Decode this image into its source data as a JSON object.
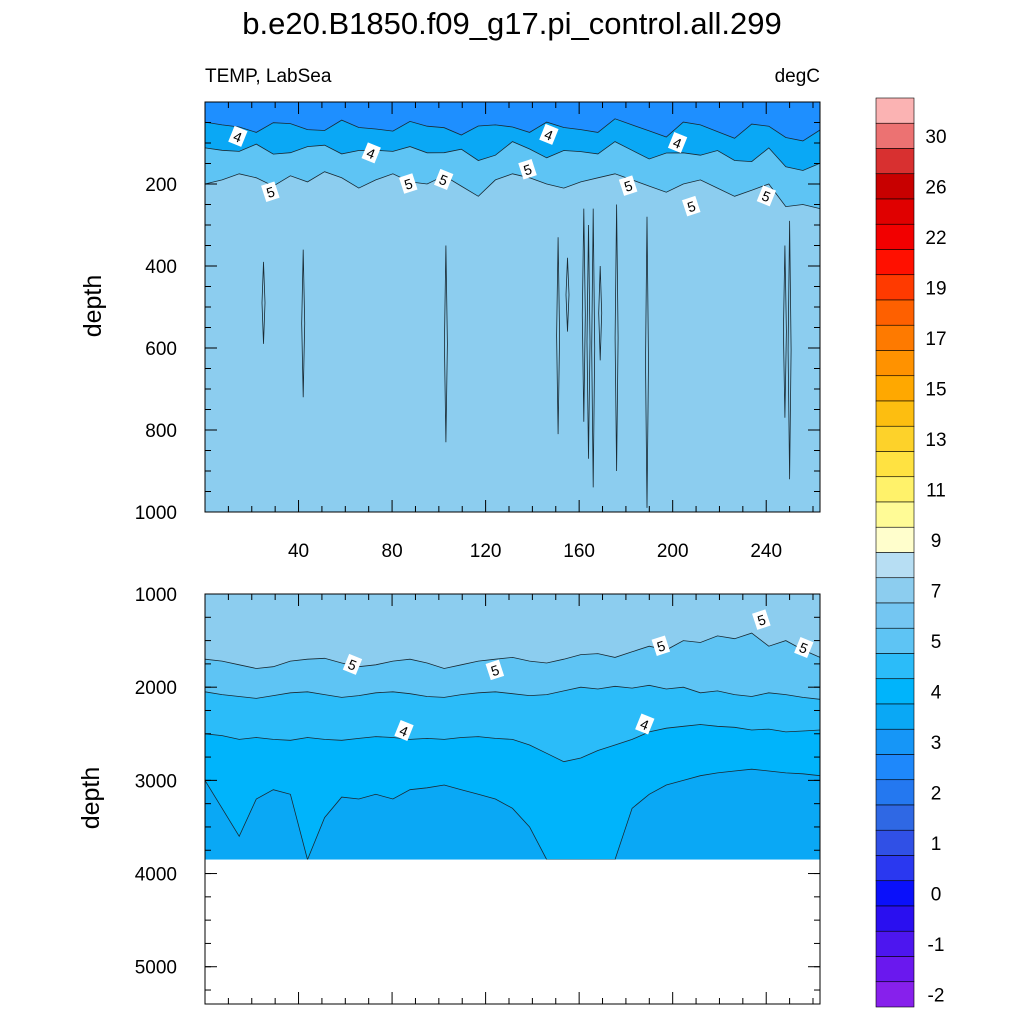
{
  "title": "b.e20.B1850.f09_g17.pi_control.all.299",
  "chart_data": [
    {
      "type": "contour",
      "panel": "upper",
      "subtitle_left": "TEMP, LabSea",
      "subtitle_right": "degC",
      "ylabel": "depth",
      "xlim": [
        0,
        263
      ],
      "ylim": [
        0,
        1000
      ],
      "y_reversed": true,
      "x_ticks": [
        40,
        80,
        120,
        160,
        200,
        240
      ],
      "y_ticks": [
        200,
        400,
        600,
        800,
        1000
      ],
      "bands": [
        {
          "value": 2.5,
          "color": "#1e8fff"
        },
        {
          "value": 3.5,
          "color": "#0aa8f5"
        },
        {
          "value": 4.5,
          "color": "#5ec4f4"
        },
        {
          "value": 5.5,
          "color": "#8ccdef"
        }
      ],
      "isotherm_5_depth": [
        200,
        190,
        175,
        185,
        205,
        180,
        195,
        170,
        185,
        210,
        190,
        175,
        195,
        200,
        180,
        205,
        230,
        190,
        175,
        185,
        200,
        210,
        195,
        185,
        175,
        190,
        205,
        220,
        200,
        190,
        210,
        230,
        215,
        200,
        255,
        250,
        260
      ],
      "contour_labels": [
        {
          "text": "4",
          "x": 14,
          "y": 85
        },
        {
          "text": "5",
          "x": 28,
          "y": 220
        },
        {
          "text": "4",
          "x": 71,
          "y": 125
        },
        {
          "text": "5",
          "x": 87,
          "y": 200
        },
        {
          "text": "5",
          "x": 102,
          "y": 190
        },
        {
          "text": "5",
          "x": 138,
          "y": 165
        },
        {
          "text": "4",
          "x": 147,
          "y": 80
        },
        {
          "text": "5",
          "x": 181,
          "y": 205
        },
        {
          "text": "4",
          "x": 202,
          "y": 100
        },
        {
          "text": "5",
          "x": 208,
          "y": 255
        },
        {
          "text": "5",
          "x": 240,
          "y": 230
        }
      ],
      "vertical_contours": [
        {
          "x": 25,
          "top": 390,
          "bottom": 590
        },
        {
          "x": 42,
          "top": 360,
          "bottom": 720
        },
        {
          "x": 103,
          "top": 350,
          "bottom": 830
        },
        {
          "x": 151,
          "top": 330,
          "bottom": 810
        },
        {
          "x": 155,
          "top": 380,
          "bottom": 560
        },
        {
          "x": 162,
          "top": 260,
          "bottom": 780
        },
        {
          "x": 164,
          "top": 300,
          "bottom": 870
        },
        {
          "x": 166,
          "top": 260,
          "bottom": 940
        },
        {
          "x": 169,
          "top": 400,
          "bottom": 630
        },
        {
          "x": 176,
          "top": 250,
          "bottom": 900
        },
        {
          "x": 189,
          "top": 280,
          "bottom": 990
        },
        {
          "x": 248,
          "top": 350,
          "bottom": 770
        },
        {
          "x": 250,
          "top": 290,
          "bottom": 920
        }
      ]
    },
    {
      "type": "contour",
      "panel": "lower",
      "ylabel": "depth",
      "xlim": [
        0,
        263
      ],
      "ylim": [
        1000,
        5400
      ],
      "y_reversed": true,
      "y_ticks": [
        1000,
        2000,
        3000,
        4000,
        5000
      ],
      "bottom_of_data": 3850,
      "bands": [
        {
          "value": 5.5,
          "color": "#8ccdef"
        },
        {
          "value": 4.5,
          "color": "#5ec4f4"
        },
        {
          "value": 3.75,
          "color": "#2bbcf9"
        },
        {
          "value": 3.25,
          "color": "#00b4fb"
        },
        {
          "value": 2.75,
          "color": "#0aa8f5"
        }
      ],
      "isotherm_5_depth": [
        1700,
        1720,
        1760,
        1800,
        1780,
        1720,
        1700,
        1690,
        1740,
        1780,
        1760,
        1720,
        1700,
        1740,
        1800,
        1760,
        1720,
        1700,
        1680,
        1720,
        1740,
        1700,
        1650,
        1640,
        1680,
        1620,
        1560,
        1600,
        1500,
        1520,
        1450,
        1480,
        1420,
        1560,
        1500,
        1600,
        1680
      ],
      "isotherm_45_depth": [
        2050,
        2080,
        2100,
        2120,
        2090,
        2060,
        2050,
        2080,
        2110,
        2090,
        2060,
        2050,
        2070,
        2100,
        2110,
        2080,
        2060,
        2050,
        2070,
        2090,
        2080,
        2040,
        2000,
        2020,
        1990,
        2010,
        1980,
        2020,
        2000,
        2060,
        2040,
        2080,
        2100,
        2060,
        2080,
        2110,
        2130
      ],
      "isotherm_4_depth": [
        2500,
        2520,
        2560,
        2540,
        2560,
        2570,
        2540,
        2560,
        2570,
        2550,
        2530,
        2540,
        2560,
        2550,
        2560,
        2540,
        2530,
        2550,
        2560,
        2620,
        2710,
        2800,
        2760,
        2680,
        2620,
        2560,
        2480,
        2440,
        2420,
        2400,
        2420,
        2430,
        2460,
        2450,
        2480,
        2470,
        2460
      ],
      "isotherm_3_depth": [
        3000,
        3300,
        3600,
        3200,
        3100,
        3150,
        3900,
        3400,
        3180,
        3200,
        3150,
        3200,
        3100,
        3080,
        3050,
        3100,
        3150,
        3200,
        3300,
        3500,
        3900,
        3900,
        3900,
        3900,
        3900,
        3300,
        3150,
        3050,
        3000,
        2950,
        2920,
        2900,
        2880,
        2900,
        2920,
        2930,
        2950
      ],
      "contour_labels": [
        {
          "text": "5",
          "x": 63,
          "y": 1760
        },
        {
          "text": "5",
          "x": 124,
          "y": 1820
        },
        {
          "text": "4",
          "x": 85,
          "y": 2470
        },
        {
          "text": "5",
          "x": 195,
          "y": 1560
        },
        {
          "text": "4",
          "x": 188,
          "y": 2400
        },
        {
          "text": "5",
          "x": 238,
          "y": 1280
        },
        {
          "text": "5",
          "x": 256,
          "y": 1580
        }
      ]
    }
  ],
  "colorbar": {
    "labels": [
      "30",
      "26",
      "22",
      "19",
      "17",
      "15",
      "13",
      "11",
      "9",
      "7",
      "5",
      "4",
      "3",
      "2",
      "1",
      "0",
      "-1",
      "-2"
    ],
    "colors": [
      "#fbb3b3",
      "#ec7272",
      "#d83030",
      "#c80000",
      "#e00000",
      "#f20000",
      "#ff1000",
      "#ff3a00",
      "#fe6000",
      "#fe7a00",
      "#ff9200",
      "#ffa800",
      "#fdbe10",
      "#fdd22a",
      "#ffe241",
      "#fff26a",
      "#fffb96",
      "#fffecc",
      "#b7def3",
      "#8ccdef",
      "#74c6f2",
      "#5ec4f4",
      "#2bbcf9",
      "#00b4fb",
      "#0aa8f5",
      "#1696f7",
      "#1e88fb",
      "#2478f0",
      "#2f68e4",
      "#3050e6",
      "#2a38f0",
      "#0a10fa",
      "#2a0ff0",
      "#4d16ef",
      "#6a18ee",
      "#8720ec"
    ]
  }
}
